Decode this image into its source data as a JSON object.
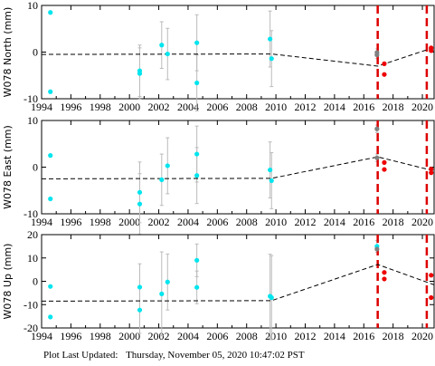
{
  "footer": {
    "label": "Plot Last Updated:",
    "timestamp": "Thursday, November 05, 2020 10:47:02 PST"
  },
  "chart_data": [
    {
      "type": "scatter",
      "ylabel": "W078 North (mm)",
      "xlim": [
        1994,
        2020.8
      ],
      "ylim": [
        -10,
        10
      ],
      "xticks": [
        1994,
        1996,
        1998,
        2000,
        2002,
        2004,
        2006,
        2008,
        2010,
        2012,
        2014,
        2016,
        2018,
        2020
      ],
      "yticks": [
        -10,
        0,
        10
      ],
      "points": [
        {
          "x": 1994.6,
          "y": 8.5,
          "err": 0,
          "color": "#00e5ee"
        },
        {
          "x": 1994.6,
          "y": -8.5,
          "err": 0,
          "color": "#00e5ee"
        },
        {
          "x": 2000.7,
          "y": -4.0,
          "err": 5.5,
          "color": "#00e5ee"
        },
        {
          "x": 2000.7,
          "y": -4.6,
          "err": 5.5,
          "color": "#00e5ee"
        },
        {
          "x": 2002.2,
          "y": 1.5,
          "err": 5.0,
          "color": "#00e5ee"
        },
        {
          "x": 2002.6,
          "y": -0.4,
          "err": 5.5,
          "color": "#00e5ee"
        },
        {
          "x": 2004.6,
          "y": 2.0,
          "err": 6.0,
          "color": "#00e5ee"
        },
        {
          "x": 2004.6,
          "y": -6.6,
          "err": 6.0,
          "color": "#00e5ee"
        },
        {
          "x": 2009.6,
          "y": 2.8,
          "err": 6.0,
          "color": "#00e5ee"
        },
        {
          "x": 2009.7,
          "y": -1.4,
          "err": 6.0,
          "color": "#00e5ee"
        },
        {
          "x": 2016.9,
          "y": -0.1,
          "err": 0.8,
          "color": "#808080"
        },
        {
          "x": 2016.9,
          "y": -0.6,
          "err": 0.8,
          "color": "#808080"
        },
        {
          "x": 2017.4,
          "y": -2.5,
          "err": 0,
          "color": "#ee0000"
        },
        {
          "x": 2017.4,
          "y": -4.8,
          "err": 0,
          "color": "#ee0000"
        },
        {
          "x": 2020.6,
          "y": 0.9,
          "err": 0,
          "color": "#ee0000"
        },
        {
          "x": 2020.6,
          "y": 0.3,
          "err": 0,
          "color": "#ee0000"
        }
      ],
      "model": [
        [
          1994,
          -0.5
        ],
        [
          2009.7,
          -0.4
        ],
        [
          2016.95,
          -3.0
        ],
        [
          2020.8,
          1.0
        ]
      ]
    },
    {
      "type": "scatter",
      "ylabel": "W078 East (mm)",
      "xlim": [
        1994,
        2020.8
      ],
      "ylim": [
        -10,
        10
      ],
      "xticks": [
        1994,
        1996,
        1998,
        2000,
        2002,
        2004,
        2006,
        2008,
        2010,
        2012,
        2014,
        2016,
        2018,
        2020
      ],
      "yticks": [
        -10,
        0,
        10
      ],
      "points": [
        {
          "x": 1994.6,
          "y": 2.5,
          "err": 0,
          "color": "#00e5ee"
        },
        {
          "x": 1994.6,
          "y": -6.8,
          "err": 0,
          "color": "#00e5ee"
        },
        {
          "x": 2000.7,
          "y": -5.4,
          "err": 6.5,
          "color": "#00e5ee"
        },
        {
          "x": 2000.7,
          "y": -7.9,
          "err": 6.5,
          "color": "#00e5ee"
        },
        {
          "x": 2002.2,
          "y": -2.7,
          "err": 5.5,
          "color": "#00e5ee"
        },
        {
          "x": 2002.6,
          "y": 0.3,
          "err": 6.0,
          "color": "#00e5ee"
        },
        {
          "x": 2004.6,
          "y": 2.8,
          "err": 6.0,
          "color": "#00e5ee"
        },
        {
          "x": 2004.6,
          "y": -1.8,
          "err": 6.0,
          "color": "#00e5ee"
        },
        {
          "x": 2009.6,
          "y": -0.6,
          "err": 6.0,
          "color": "#00e5ee"
        },
        {
          "x": 2009.7,
          "y": -2.9,
          "err": 6.0,
          "color": "#00e5ee"
        },
        {
          "x": 2016.9,
          "y": 8.2,
          "err": 0.8,
          "color": "#808080"
        },
        {
          "x": 2016.9,
          "y": 2.0,
          "err": 0.8,
          "color": "#808080"
        },
        {
          "x": 2017.4,
          "y": 1.0,
          "err": 0,
          "color": "#ee0000"
        },
        {
          "x": 2017.4,
          "y": -0.5,
          "err": 0,
          "color": "#ee0000"
        },
        {
          "x": 2020.6,
          "y": -0.4,
          "err": 0,
          "color": "#ee0000"
        },
        {
          "x": 2020.6,
          "y": -1.2,
          "err": 0,
          "color": "#ee0000"
        }
      ],
      "model": [
        [
          1994,
          -2.5
        ],
        [
          2009.7,
          -2.4
        ],
        [
          2016.95,
          2.2
        ],
        [
          2020.8,
          -0.8
        ]
      ]
    },
    {
      "type": "scatter",
      "ylabel": "W078 Up (mm)",
      "xlim": [
        1994,
        2020.8
      ],
      "ylim": [
        -20,
        20
      ],
      "xticks": [
        1994,
        1996,
        1998,
        2000,
        2002,
        2004,
        2006,
        2008,
        2010,
        2012,
        2014,
        2016,
        2018,
        2020
      ],
      "yticks": [
        -20,
        -10,
        0,
        10,
        20
      ],
      "points": [
        {
          "x": 1994.6,
          "y": -2.2,
          "err": 0,
          "color": "#00e5ee"
        },
        {
          "x": 1994.6,
          "y": -15.3,
          "err": 0,
          "color": "#00e5ee"
        },
        {
          "x": 2000.7,
          "y": -2.5,
          "err": 10.0,
          "color": "#00e5ee"
        },
        {
          "x": 2000.7,
          "y": -12.3,
          "err": 10.0,
          "color": "#00e5ee"
        },
        {
          "x": 2002.2,
          "y": -5.4,
          "err": 18.0,
          "color": "#00e5ee"
        },
        {
          "x": 2002.6,
          "y": -0.3,
          "err": 12.0,
          "color": "#00e5ee"
        },
        {
          "x": 2004.6,
          "y": 9.0,
          "err": 7.0,
          "color": "#00e5ee"
        },
        {
          "x": 2004.6,
          "y": -2.6,
          "err": 7.0,
          "color": "#00e5ee"
        },
        {
          "x": 2009.6,
          "y": -6.4,
          "err": 18.0,
          "color": "#00e5ee"
        },
        {
          "x": 2009.7,
          "y": -7.0,
          "err": 18.0,
          "color": "#00e5ee"
        },
        {
          "x": 2016.9,
          "y": 15.0,
          "err": 2.5,
          "color": "#00e5ee"
        },
        {
          "x": 2016.9,
          "y": 13.8,
          "err": 0,
          "color": "#808080"
        },
        {
          "x": 2017.4,
          "y": 3.8,
          "err": 0,
          "color": "#ee0000"
        },
        {
          "x": 2017.4,
          "y": 1.0,
          "err": 0,
          "color": "#ee0000"
        },
        {
          "x": 2020.6,
          "y": 2.6,
          "err": 0,
          "color": "#ee0000"
        },
        {
          "x": 2020.6,
          "y": -7.0,
          "err": 0,
          "color": "#ee0000"
        }
      ],
      "model": [
        [
          1994,
          -8.5
        ],
        [
          2009.7,
          -8.3
        ],
        [
          2016.95,
          7.2
        ],
        [
          2020.8,
          -1.5
        ]
      ]
    }
  ],
  "event_lines": [
    2016.95,
    2020.3
  ],
  "colors": {
    "early_data": "#00e5ee",
    "recent_data": "#ee0000",
    "flagged_data": "#808080",
    "event_line": "#dd0000",
    "model_line": "#000000",
    "error_bar": "#bbbbbb"
  }
}
